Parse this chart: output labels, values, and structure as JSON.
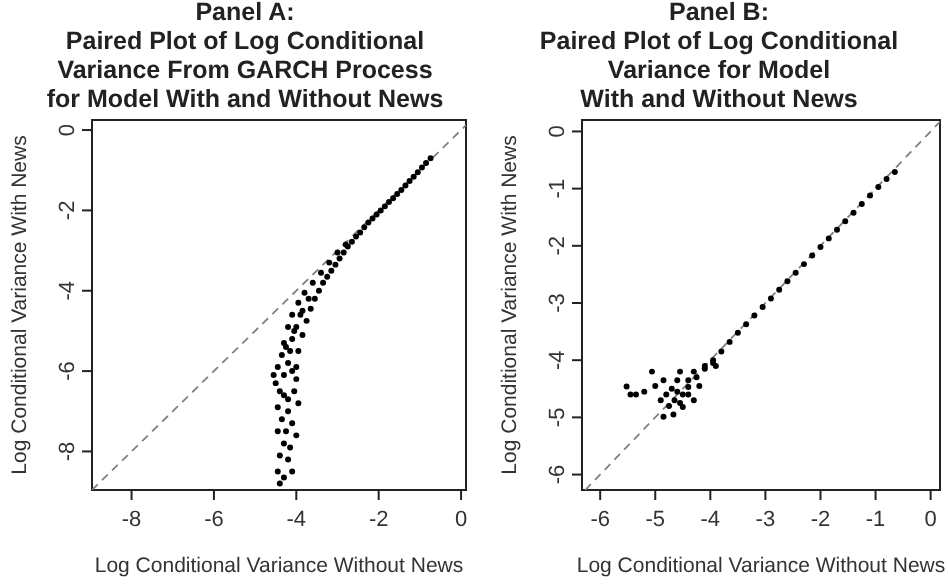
{
  "chart_data": [
    {
      "type": "scatter",
      "title": "Panel A:\nPaired Plot of Log Conditional\nVariance From GARCH Process\nfor Model  With and Without News",
      "xlabel": "Log Conditional Variance Without News",
      "ylabel": "Log Conditional Variance With News",
      "xlim": [
        -8.96,
        0.12
      ],
      "ylim": [
        -8.96,
        0.25
      ],
      "xticks": [
        -8,
        -6,
        -4,
        -2,
        0
      ],
      "yticks": [
        -8,
        -6,
        -4,
        -2,
        0
      ],
      "grid": false,
      "series": [
        {
          "marker": "circle",
          "color": "#000000",
          "x": [
            -0.74,
            -0.85,
            -0.95,
            -1.05,
            -1.15,
            -1.25,
            -1.35,
            -1.45,
            -1.55,
            -1.65,
            -1.75,
            -1.85,
            -1.95,
            -2.05,
            -2.15,
            -2.25,
            -2.35,
            -2.45,
            -2.55,
            -2.65,
            -2.75,
            -2.85,
            -2.95,
            -3.05,
            -3.15,
            -3.25,
            -3.35,
            -3.45,
            -3.55,
            -3.65,
            -3.75,
            -3.85,
            -3.95,
            -4.0,
            -2.8,
            -3.0,
            -3.2,
            -3.4,
            -3.6,
            -3.8,
            -3.95,
            -4.1,
            -4.2,
            -4.3,
            -4.35,
            -4.45,
            -4.55,
            -4.5,
            -3.7,
            -3.9,
            -4.0,
            -4.1,
            -4.15,
            -4.2,
            -4.3,
            -4.1,
            -4.0,
            -3.85,
            -4.05,
            -4.25,
            -4.4,
            -4.3,
            -4.2,
            -4.05,
            -3.95,
            -4.45,
            -4.2,
            -4.35,
            -4.1,
            -4.25,
            -4.45,
            -4.0,
            -4.3,
            -4.15,
            -4.4,
            -4.2,
            -4.45,
            -4.1,
            -4.3,
            -4.4
          ],
          "values": [
            -0.7,
            -0.82,
            -0.93,
            -1.05,
            -1.16,
            -1.27,
            -1.38,
            -1.49,
            -1.59,
            -1.7,
            -1.79,
            -1.9,
            -2.0,
            -2.1,
            -2.2,
            -2.3,
            -2.42,
            -2.55,
            -2.65,
            -2.78,
            -2.9,
            -3.05,
            -3.2,
            -3.35,
            -3.5,
            -3.65,
            -3.8,
            -4.0,
            -4.2,
            -4.45,
            -4.75,
            -5.1,
            -5.5,
            -5.9,
            -2.85,
            -3.05,
            -3.3,
            -3.55,
            -3.8,
            -4.05,
            -4.3,
            -4.6,
            -4.9,
            -5.3,
            -5.6,
            -5.9,
            -6.1,
            -6.3,
            -4.2,
            -4.6,
            -4.9,
            -5.2,
            -5.5,
            -5.8,
            -6.1,
            -6.0,
            -6.2,
            -4.5,
            -5.0,
            -5.4,
            -6.5,
            -6.6,
            -6.7,
            -6.5,
            -6.8,
            -6.9,
            -7.0,
            -7.2,
            -7.3,
            -7.5,
            -7.5,
            -7.6,
            -7.8,
            -7.9,
            -8.1,
            -8.2,
            -8.5,
            -8.5,
            -8.65,
            -8.8
          ]
        },
        {
          "type": "line",
          "color": "#808080",
          "line_style": "dashed",
          "x": [
            -8.96,
            0.12
          ],
          "values": [
            -8.96,
            0.12
          ]
        }
      ]
    },
    {
      "type": "scatter",
      "title": "Panel B:\nPaired Plot of Log Conditional\nVariance for Model\nWith and Without News",
      "xlabel": "Log Conditional Variance Without News",
      "ylabel": "Log Conditional Variance With News",
      "xlim": [
        -6.33,
        0.17
      ],
      "ylim": [
        -6.27,
        0.2
      ],
      "xticks": [
        -6,
        -5,
        -4,
        -3,
        -2,
        -1,
        0
      ],
      "yticks": [
        -6,
        -5,
        -4,
        -3,
        -2,
        -1,
        0
      ],
      "grid": false,
      "series": [
        {
          "marker": "circle",
          "color": "#000000",
          "x": [
            -0.65,
            -0.8,
            -0.95,
            -1.1,
            -1.25,
            -1.4,
            -1.55,
            -1.7,
            -1.85,
            -2.0,
            -2.15,
            -2.3,
            -2.45,
            -2.6,
            -2.75,
            -2.9,
            -3.05,
            -3.2,
            -3.35,
            -3.5,
            -3.65,
            -3.8,
            -3.95,
            -4.1,
            -4.25,
            -4.4,
            -4.5,
            -4.55,
            -3.9,
            -4.1,
            -4.3,
            -4.4,
            -4.6,
            -4.7,
            -4.8,
            -4.65,
            -4.5,
            -4.3,
            -4.4,
            -4.2,
            -4.6,
            -4.75,
            -4.85,
            -5.06,
            -5.2,
            -5.35,
            -5.52,
            -5.45,
            -4.85,
            -4.67,
            -4.9,
            -5.0,
            -4.55,
            -3.95
          ],
          "values": [
            -0.71,
            -0.83,
            -0.97,
            -1.12,
            -1.27,
            -1.42,
            -1.57,
            -1.72,
            -1.87,
            -2.02,
            -2.17,
            -2.32,
            -2.47,
            -2.62,
            -2.77,
            -2.92,
            -3.07,
            -3.22,
            -3.37,
            -3.52,
            -3.68,
            -3.85,
            -4.0,
            -4.15,
            -4.3,
            -4.47,
            -4.6,
            -4.75,
            -4.1,
            -4.1,
            -4.2,
            -4.35,
            -4.35,
            -4.5,
            -4.6,
            -4.7,
            -4.82,
            -4.7,
            -4.6,
            -4.45,
            -4.55,
            -4.8,
            -4.35,
            -4.2,
            -4.55,
            -4.6,
            -4.46,
            -4.6,
            -4.99,
            -4.95,
            -4.7,
            -4.45,
            -4.2,
            -4.05
          ]
        },
        {
          "type": "line",
          "color": "#808080",
          "line_style": "dashed",
          "x": [
            -6.27,
            0.17
          ],
          "values": [
            -6.27,
            0.17
          ]
        }
      ]
    }
  ]
}
